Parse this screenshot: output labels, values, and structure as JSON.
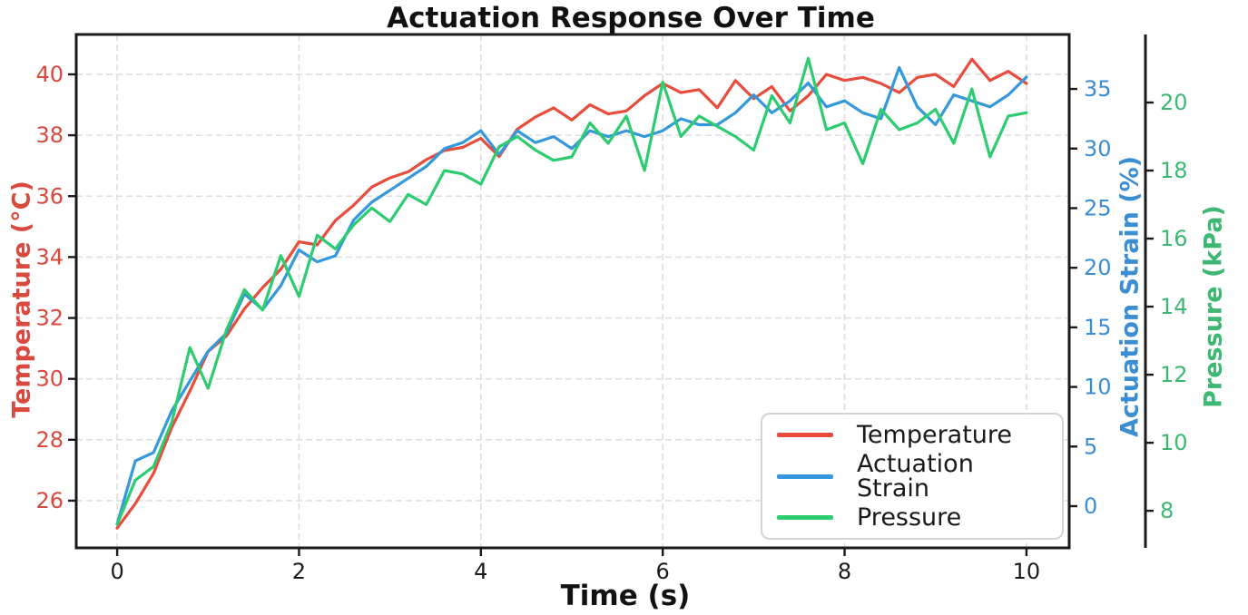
{
  "chart_data": {
    "type": "line",
    "title": "Actuation Response Over Time",
    "xlabel": "Time (s)",
    "grid": true,
    "x_ticks": [
      0,
      2,
      4,
      6,
      8,
      10
    ],
    "xlim": [
      -0.45,
      10.47
    ],
    "x": [
      0,
      0.2,
      0.4,
      0.6,
      0.8,
      1,
      1.2,
      1.4,
      1.6,
      1.8,
      2,
      2.2,
      2.4,
      2.6,
      2.8,
      3,
      3.2,
      3.4,
      3.6,
      3.8,
      4,
      4.2,
      4.4,
      4.6,
      4.8,
      5,
      5.2,
      5.4,
      5.6,
      5.8,
      6,
      6.2,
      6.4,
      6.6,
      6.8,
      7,
      7.2,
      7.4,
      7.6,
      7.8,
      8,
      8.2,
      8.4,
      8.6,
      8.8,
      9,
      9.2,
      9.4,
      9.6,
      9.8,
      10
    ],
    "axes": [
      {
        "id": "temperature",
        "label": "Temperature (°C)",
        "side": "left",
        "color": "#d9493e",
        "ticks": [
          26,
          28,
          30,
          32,
          34,
          36,
          38,
          40
        ],
        "ylim": [
          24.45,
          41.31
        ]
      },
      {
        "id": "strain",
        "label": "Actuation Strain (%)",
        "side": "right",
        "color": "#3b8ed2",
        "ticks": [
          0,
          5,
          10,
          15,
          20,
          25,
          30,
          35
        ],
        "ylim": [
          -3.5,
          39.57
        ]
      },
      {
        "id": "pressure",
        "label": "Pressure (kPa)",
        "side": "right-outer",
        "color": "#3cb873",
        "ticks": [
          8,
          10,
          12,
          14,
          16,
          18,
          20
        ],
        "ylim": [
          6.91,
          22.0
        ]
      }
    ],
    "series": [
      {
        "name": "Temperature",
        "axis": "temperature",
        "color": "#e74c3c",
        "values": [
          25.1,
          25.9,
          26.9,
          28.4,
          29.6,
          30.9,
          31.4,
          32.3,
          33.0,
          33.6,
          34.5,
          34.4,
          35.2,
          35.7,
          36.3,
          36.6,
          36.8,
          37.2,
          37.5,
          37.6,
          37.9,
          37.3,
          38.2,
          38.6,
          38.9,
          38.5,
          39.0,
          38.7,
          38.8,
          39.3,
          39.7,
          39.4,
          39.5,
          38.9,
          39.8,
          39.2,
          39.6,
          38.8,
          39.3,
          40.0,
          39.8,
          39.9,
          39.7,
          39.4,
          39.9,
          40.0,
          39.6,
          40.5,
          39.8,
          40.1,
          39.7
        ]
      },
      {
        "name": "Actuation Strain",
        "axis": "strain",
        "color": "#3498db",
        "values": [
          -1.5,
          3.8,
          4.5,
          8.0,
          10.5,
          13.0,
          14.5,
          17.8,
          16.5,
          18.5,
          21.5,
          20.5,
          21.0,
          24.0,
          25.5,
          26.5,
          27.5,
          28.5,
          30.0,
          30.5,
          31.5,
          29.5,
          31.5,
          30.5,
          31.0,
          30.0,
          31.5,
          31.0,
          31.5,
          31.0,
          31.5,
          32.5,
          32.0,
          32.0,
          33.0,
          34.5,
          33.0,
          34.0,
          35.5,
          33.5,
          34.0,
          33.0,
          32.5,
          36.8,
          33.5,
          32.0,
          34.5,
          34.0,
          33.5,
          34.5,
          36.0
        ]
      },
      {
        "name": "Pressure",
        "axis": "pressure",
        "color": "#2ecc71",
        "values": [
          7.6,
          8.9,
          9.3,
          10.6,
          12.8,
          11.6,
          13.3,
          14.5,
          13.9,
          15.5,
          14.3,
          16.1,
          15.7,
          16.4,
          16.9,
          16.5,
          17.3,
          17.0,
          18.0,
          17.9,
          17.6,
          18.7,
          19.0,
          18.6,
          18.3,
          18.4,
          19.4,
          18.8,
          19.6,
          18.0,
          20.6,
          19.0,
          19.6,
          19.3,
          19.0,
          18.6,
          20.2,
          19.4,
          21.3,
          19.2,
          19.4,
          18.2,
          19.8,
          19.2,
          19.4,
          19.8,
          18.8,
          20.4,
          18.4,
          19.6,
          19.7
        ]
      }
    ],
    "legend": {
      "position": "lower right",
      "entries": [
        "Temperature",
        "Actuation Strain",
        "Pressure"
      ]
    }
  }
}
